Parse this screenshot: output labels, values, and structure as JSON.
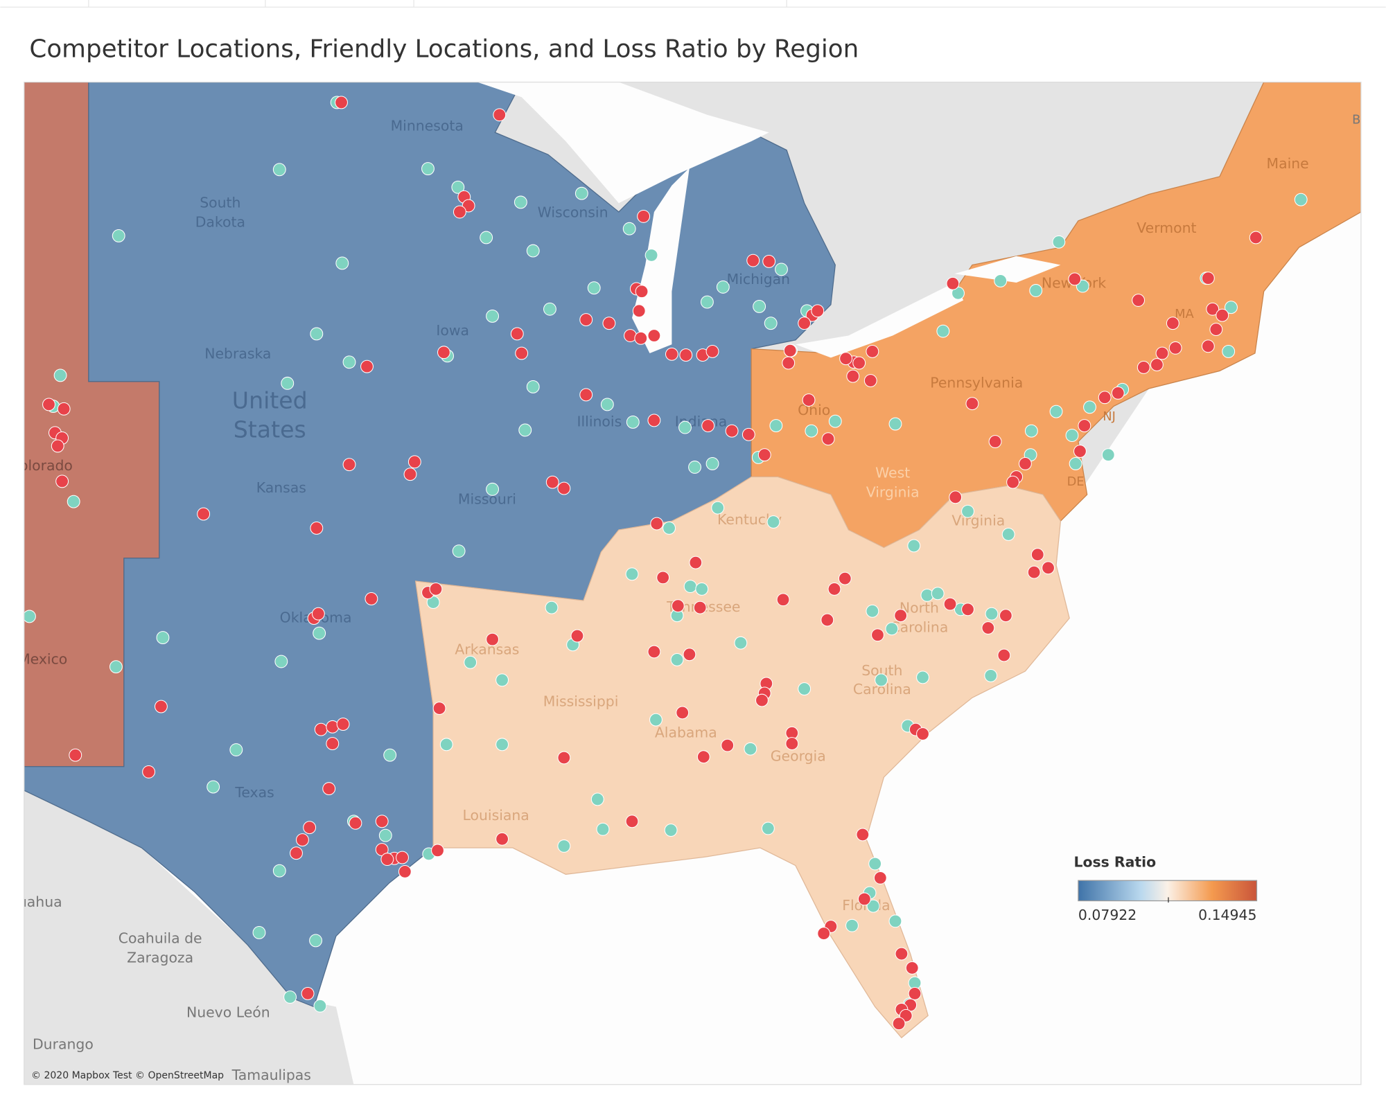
{
  "title": "Competitor Locations, Friendly Locations, and Loss Ratio by Region",
  "map": {
    "labels": [
      "Minnesota",
      "South",
      "Dakota",
      "Wisconsin",
      "Michigan",
      "Iowa",
      "Nebraska",
      "United",
      "States",
      "Illinois",
      "Indiana",
      "Kansas",
      "Missouri",
      "Colorado",
      "New Mexico",
      "Oklahoma",
      "Texas",
      "Arkansas",
      "Mississippi",
      "Alabama",
      "Georgia",
      "Louisiana",
      "Florida",
      "South",
      "Carolina",
      "North",
      "Carolina",
      "Tennessee",
      "Kentucky",
      "Virginia",
      "West",
      "Virginia",
      "Ohio",
      "Pennsylvania",
      "New York",
      "Vermont",
      "Maine",
      "MA",
      "NJ",
      "DE",
      "Chihuahua",
      "Coahuila de",
      "Zaragoza",
      "Nuevo León",
      "Durango",
      "Tamaulipas",
      "Br"
    ],
    "attribution": "© 2020 Mapbox Test © OpenStreetMap",
    "legend": {
      "title": "Loss Ratio",
      "min": 0.07922,
      "max": 0.14945
    }
  }
}
